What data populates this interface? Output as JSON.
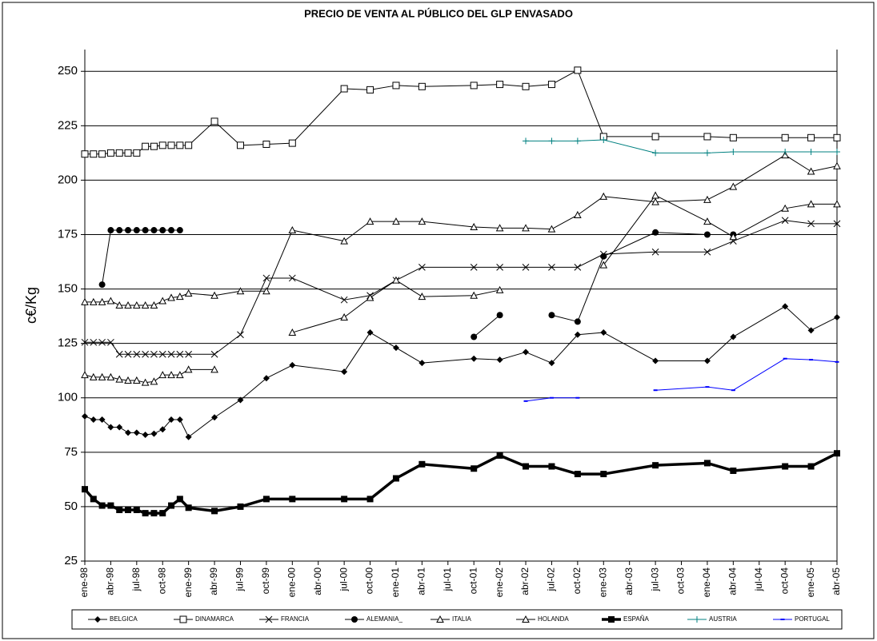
{
  "chart_data": {
    "type": "line",
    "title": "PRECIO DE VENTA AL PÚBLICO DEL GLP ENVASADO",
    "y_label": "c€/Kg",
    "xlim": [
      0,
      87
    ],
    "xticks": [
      {
        "value": 0,
        "label": "ene-98"
      },
      {
        "value": 3,
        "label": "abr-98"
      },
      {
        "value": 6,
        "label": "jul-98"
      },
      {
        "value": 9,
        "label": "oct-98"
      },
      {
        "value": 12,
        "label": "ene-99"
      },
      {
        "value": 15,
        "label": "abr-99"
      },
      {
        "value": 18,
        "label": "jul-99"
      },
      {
        "value": 21,
        "label": "oct-99"
      },
      {
        "value": 24,
        "label": "ene-00"
      },
      {
        "value": 27,
        "label": "abr-00"
      },
      {
        "value": 30,
        "label": "jul-00"
      },
      {
        "value": 33,
        "label": "oct-00"
      },
      {
        "value": 36,
        "label": "ene-01"
      },
      {
        "value": 39,
        "label": "abr-01"
      },
      {
        "value": 42,
        "label": "jul-01"
      },
      {
        "value": 45,
        "label": "oct-01"
      },
      {
        "value": 48,
        "label": "ene-02"
      },
      {
        "value": 51,
        "label": "abr-02"
      },
      {
        "value": 54,
        "label": "jul-02"
      },
      {
        "value": 57,
        "label": "oct-02"
      },
      {
        "value": 60,
        "label": "ene-03"
      },
      {
        "value": 63,
        "label": "abr-03"
      },
      {
        "value": 66,
        "label": "jul-03"
      },
      {
        "value": 69,
        "label": "oct-03"
      },
      {
        "value": 72,
        "label": "ene-04"
      },
      {
        "value": 75,
        "label": "abr-04"
      },
      {
        "value": 78,
        "label": "jul-04"
      },
      {
        "value": 81,
        "label": "oct-04"
      },
      {
        "value": 84,
        "label": "ene-05"
      },
      {
        "value": 87,
        "label": "abr-05"
      }
    ],
    "ylim": [
      25,
      260
    ],
    "yticks": [
      25,
      50,
      75,
      100,
      125,
      150,
      175,
      200,
      225,
      250
    ],
    "grid": true,
    "legend": "bottom",
    "series": [
      {
        "name": "BELGICA",
        "color": "#000000",
        "marker": "diamond",
        "width": 1,
        "x": [
          0,
          1,
          2,
          3,
          4,
          5,
          6,
          7,
          8,
          9,
          10,
          11,
          12,
          15,
          18,
          21,
          24,
          30,
          33,
          36,
          39,
          45,
          48,
          51,
          54,
          57,
          60,
          66,
          72,
          75,
          81,
          84,
          87
        ],
        "values": [
          91.5,
          90,
          90,
          86.5,
          86.5,
          84,
          84,
          83,
          83.5,
          85.5,
          90,
          90,
          82,
          91,
          99,
          109,
          115,
          112,
          130,
          123,
          116,
          118,
          117.5,
          121,
          116,
          129,
          130,
          117,
          117,
          128,
          142,
          131,
          137
        ]
      },
      {
        "name": "DINAMARCA",
        "color": "#000000",
        "marker": "open-square",
        "width": 1,
        "x": [
          0,
          1,
          2,
          3,
          4,
          5,
          6,
          7,
          8,
          9,
          10,
          11,
          12,
          15,
          18,
          21,
          24,
          30,
          33,
          36,
          39,
          45,
          48,
          51,
          54,
          57,
          60,
          66,
          72,
          75,
          81,
          84,
          87
        ],
        "values": [
          212,
          212,
          212,
          212.5,
          212.5,
          212.5,
          212.5,
          215.5,
          215.5,
          216,
          216,
          216,
          216,
          227,
          216,
          216.5,
          217,
          242,
          241.5,
          243.5,
          243,
          243.5,
          244,
          243,
          244,
          250.5,
          220,
          220,
          220,
          219.5,
          219.5,
          219.5,
          219.5
        ]
      },
      {
        "name": "FRANCIA",
        "color": "#000000",
        "marker": "cross",
        "width": 1,
        "x": [
          0,
          1,
          2,
          3,
          4,
          5,
          6,
          7,
          8,
          9,
          10,
          11,
          12,
          15,
          18,
          21,
          24,
          30,
          33,
          36,
          39,
          45,
          48,
          51,
          54,
          57,
          60,
          66,
          72,
          75,
          81,
          84,
          87
        ],
        "values": [
          125.5,
          125.5,
          125.5,
          125.5,
          120,
          120,
          120,
          120,
          120,
          120,
          120,
          120,
          120,
          120,
          129,
          155,
          155,
          145,
          147,
          154,
          160,
          160,
          160,
          160,
          160,
          160,
          166,
          167,
          167,
          172,
          181.5,
          180,
          180
        ]
      },
      {
        "name": "ALEMANIA_",
        "color": "#000000",
        "marker": "dot",
        "width": 1,
        "x": [
          2,
          3,
          4,
          5,
          6,
          7,
          8,
          9,
          10,
          11,
          30,
          45,
          48,
          51,
          54,
          57,
          60,
          66,
          72,
          75
        ],
        "values": [
          152,
          177,
          177,
          177,
          177,
          177,
          177,
          177,
          177,
          177,
          null,
          128,
          138,
          null,
          138,
          135,
          165,
          176,
          175,
          175
        ]
      },
      {
        "name": "ITALIA",
        "color": "#000000",
        "marker": "open-triangle",
        "width": 1,
        "x": [
          0,
          1,
          2,
          3,
          4,
          5,
          6,
          7,
          8,
          9,
          10,
          11,
          12,
          15,
          18,
          21,
          24,
          30,
          33,
          36,
          39,
          45,
          48,
          51,
          54,
          57,
          60,
          66,
          72,
          75,
          81,
          84,
          87
        ],
        "values": [
          144,
          144,
          144,
          144.5,
          142.5,
          142.5,
          142.5,
          142.5,
          142.5,
          144.5,
          146,
          146.5,
          148,
          147,
          149,
          149,
          177,
          172,
          181,
          181,
          181,
          178.5,
          178,
          178,
          177.5,
          184,
          192.5,
          190,
          191,
          197,
          211.5,
          204,
          206.5
        ]
      },
      {
        "name": "HOLANDA",
        "color": "#000000",
        "marker": "open-triangle",
        "width": 1,
        "x": [
          0,
          1,
          2,
          3,
          4,
          5,
          6,
          7,
          8,
          9,
          10,
          11,
          12,
          15,
          20,
          24,
          30,
          33,
          36,
          39,
          45,
          48,
          54,
          60,
          66,
          72,
          75,
          81,
          84,
          87
        ],
        "values": [
          110.5,
          109.5,
          109.5,
          109.5,
          108.5,
          108,
          108,
          107,
          107.5,
          110.5,
          110.5,
          110.5,
          113,
          113,
          null,
          130,
          137,
          146,
          154,
          146.5,
          147,
          149.5,
          null,
          161,
          193,
          181,
          174,
          187,
          189,
          189
        ]
      },
      {
        "name": "ESPAÑA",
        "color": "#000000",
        "marker": "square",
        "width": 3.5,
        "x": [
          0,
          1,
          2,
          3,
          4,
          5,
          6,
          7,
          8,
          9,
          10,
          11,
          12,
          15,
          18,
          21,
          24,
          30,
          33,
          36,
          39,
          45,
          48,
          51,
          54,
          57,
          60,
          66,
          72,
          75,
          81,
          84,
          87
        ],
        "values": [
          58,
          53.5,
          50.5,
          50.5,
          48.5,
          48.5,
          48.5,
          47,
          47,
          47,
          50.5,
          53.5,
          49.5,
          48,
          50,
          53.5,
          53.5,
          53.5,
          53.5,
          63,
          69.5,
          67.5,
          73.5,
          68.5,
          68.5,
          65,
          65,
          69,
          70,
          66.5,
          68.5,
          68.5,
          74.5
        ]
      },
      {
        "name": "AUSTRIA",
        "color": "#008080",
        "marker": "plus",
        "width": 1,
        "x": [
          51,
          54,
          57,
          60,
          66,
          72,
          75,
          81,
          84,
          87
        ],
        "values": [
          218,
          218,
          218,
          218.5,
          212.5,
          212.5,
          213,
          213,
          213,
          213
        ]
      },
      {
        "name": "PORTUGAL",
        "color": "#0000ff",
        "marker": "dash",
        "width": 1,
        "x": [
          51,
          54,
          57,
          63,
          66,
          72,
          75,
          81,
          84,
          87
        ],
        "values": [
          98.5,
          100,
          100,
          null,
          103.5,
          105,
          103.5,
          118,
          117.5,
          116.5
        ]
      }
    ]
  }
}
